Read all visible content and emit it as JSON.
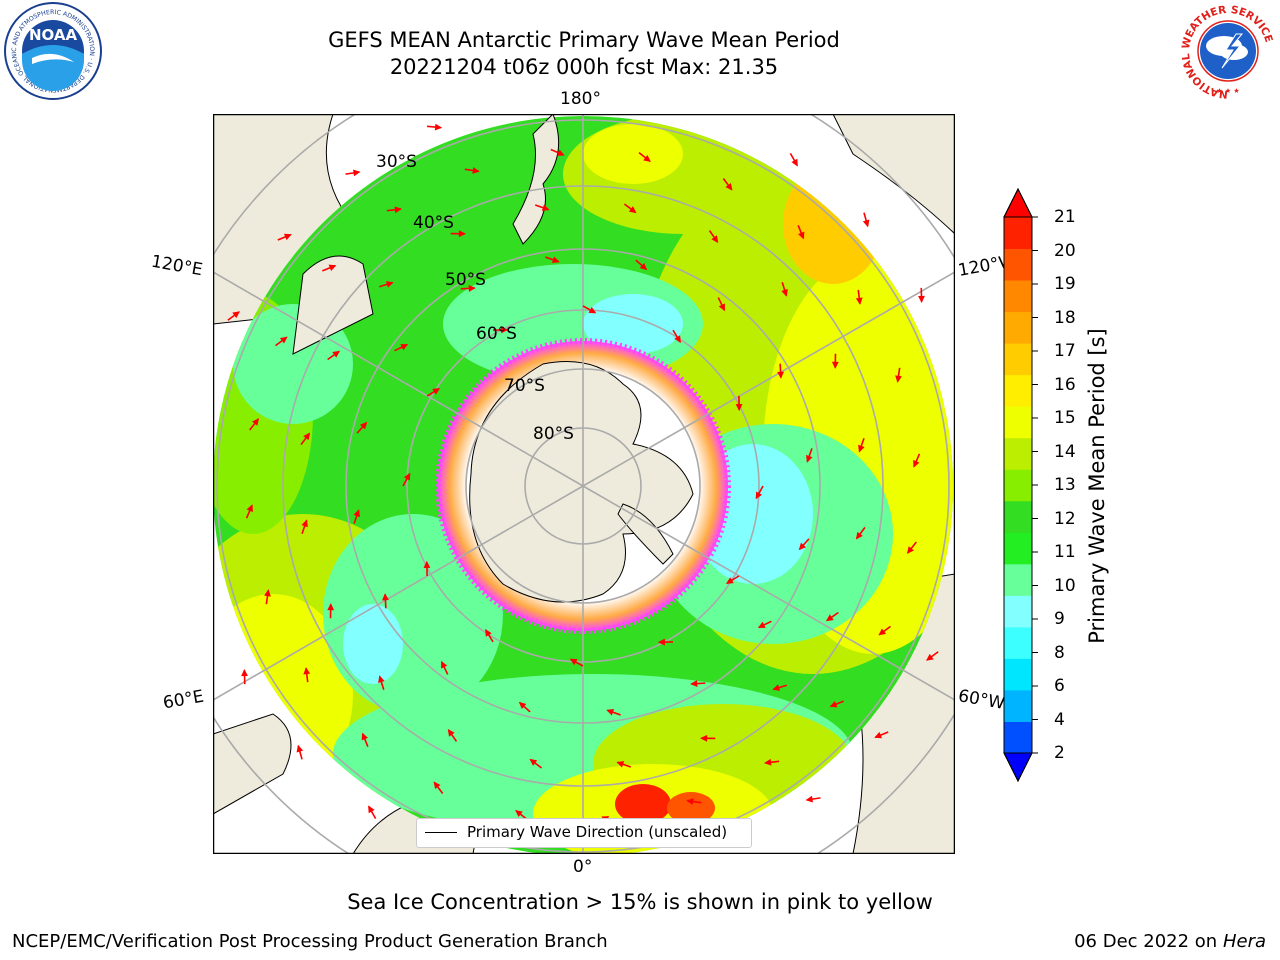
{
  "header": {
    "title_line1": "GEFS MEAN Antarctic Primary Wave Mean Period",
    "title_line2": "20221204 t06z 000h fcst   Max: 21.35"
  },
  "logos": {
    "noaa_text": "NOAA",
    "noaa_ring_text": "NATIONAL OCEANIC AND ATMOSPHERIC ADMINISTRATION · U.S. DEPARTMENT OF COMMERCE",
    "nws_ring_text": "NATIONAL WEATHER SERVICE"
  },
  "map": {
    "projection": "south polar stereographic",
    "lon_labels": {
      "top": "180°",
      "bottom": "0°",
      "upper_left": "120°E",
      "upper_right": "120°W",
      "lower_left": "60°E",
      "lower_right": "60°W"
    },
    "lat_labels": [
      "30°S",
      "40°S",
      "50°S",
      "60°S",
      "70°S",
      "80°S"
    ],
    "legend": "Primary Wave Direction (unscaled)",
    "colors": {
      "land": "#efebdc",
      "ice": "#ffffff",
      "arrows": "#ff0000",
      "grid": "#aaaaaa",
      "ice_edge": "#ff40ff"
    }
  },
  "colorbar": {
    "label": "Primary Wave Mean Period [s]",
    "ticks": [
      "2",
      "4",
      "6",
      "8",
      "9",
      "10",
      "11",
      "12",
      "13",
      "14",
      "15",
      "16",
      "17",
      "18",
      "19",
      "20",
      "21"
    ],
    "colors": [
      "#0050ff",
      "#00b4ff",
      "#00e6ff",
      "#3cffff",
      "#82ffff",
      "#66ff99",
      "#22ee22",
      "#33dd22",
      "#88ee00",
      "#bbee00",
      "#eeff00",
      "#ffee00",
      "#ffcc00",
      "#ffaa00",
      "#ff8800",
      "#ff5500",
      "#ff2200"
    ],
    "under_color": "#0000ff",
    "over_color": "#ff0000"
  },
  "caption": "Sea Ice Concentration > 15% is shown in pink to yellow",
  "footer": {
    "left": "NCEP/EMC/Verification Post Processing Product Generation Branch",
    "date": "06 Dec 2022 on",
    "machine": "Hera"
  }
}
